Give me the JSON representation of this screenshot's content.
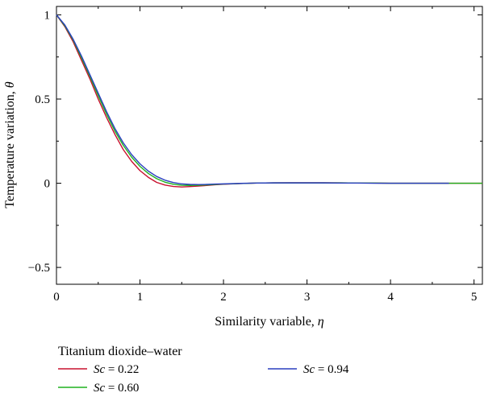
{
  "chart_data": {
    "type": "line",
    "title": "",
    "xlabel_text": "Similarity variable, ",
    "xlabel_symbol": "η",
    "ylabel_text": "Temperature variation, ",
    "ylabel_symbol": "θ",
    "xlim": [
      0,
      5.1
    ],
    "ylim": [
      -0.6,
      1.05
    ],
    "x_ticks": [
      0,
      1,
      2,
      3,
      4,
      5
    ],
    "x_tick_labels": [
      "0",
      "1",
      "2",
      "3",
      "4",
      "5"
    ],
    "y_ticks": [
      1,
      0.5,
      0,
      -0.5
    ],
    "y_tick_labels": [
      "1",
      "0.5",
      "0",
      "−0.5"
    ],
    "grid": false,
    "legend_title": "Titanium dioxide–water",
    "legend_placement": "bottom, below plot",
    "series": [
      {
        "name_symbol": "Sc",
        "name_value": " = 0.22",
        "color": "#c8102e",
        "x": [
          0,
          0.1,
          0.2,
          0.3,
          0.4,
          0.5,
          0.6,
          0.7,
          0.8,
          0.9,
          1.0,
          1.1,
          1.2,
          1.3,
          1.4,
          1.5,
          1.6,
          1.7,
          1.8,
          1.9,
          2.0,
          2.2,
          2.4,
          2.6,
          2.8,
          3.0,
          3.2,
          3.4,
          3.6,
          3.8,
          4.0,
          4.4,
          4.8,
          5.1
        ],
        "y": [
          1.0,
          0.93,
          0.84,
          0.73,
          0.62,
          0.5,
          0.39,
          0.29,
          0.2,
          0.13,
          0.075,
          0.035,
          0.005,
          -0.011,
          -0.019,
          -0.022,
          -0.02,
          -0.017,
          -0.013,
          -0.009,
          -0.006,
          -0.002,
          0.001,
          0.002,
          0.003,
          0.003,
          0.003,
          0.002,
          0.001,
          0.001,
          0.0,
          0.0,
          0.0,
          0.0
        ]
      },
      {
        "name_symbol": "Sc",
        "name_value": " = 0.60",
        "color": "#1fb21f",
        "x": [
          0,
          0.1,
          0.2,
          0.3,
          0.4,
          0.5,
          0.6,
          0.7,
          0.8,
          0.9,
          1.0,
          1.1,
          1.2,
          1.3,
          1.4,
          1.5,
          1.6,
          1.7,
          1.8,
          1.9,
          2.0,
          2.2,
          2.4,
          2.6,
          2.8,
          3.0,
          3.2,
          3.4,
          3.6,
          3.8,
          4.0,
          4.4,
          4.8,
          5.1
        ],
        "y": [
          1.0,
          0.935,
          0.85,
          0.745,
          0.635,
          0.52,
          0.41,
          0.31,
          0.225,
          0.155,
          0.1,
          0.058,
          0.027,
          0.006,
          -0.006,
          -0.012,
          -0.013,
          -0.012,
          -0.01,
          -0.007,
          -0.005,
          -0.002,
          0.001,
          0.002,
          0.002,
          0.002,
          0.002,
          0.002,
          0.001,
          0.001,
          0.0,
          0.0,
          0.0,
          0.0
        ]
      },
      {
        "name_symbol": "Sc",
        "name_value": " = 0.94",
        "color": "#2a3fbf",
        "x": [
          0,
          0.1,
          0.2,
          0.3,
          0.4,
          0.5,
          0.6,
          0.7,
          0.8,
          0.9,
          1.0,
          1.1,
          1.2,
          1.3,
          1.4,
          1.5,
          1.6,
          1.7,
          1.8,
          1.9,
          2.0,
          2.2,
          2.4,
          2.6,
          2.8,
          3.0,
          3.2,
          3.4,
          3.6,
          3.8,
          4.0,
          4.4,
          4.7
        ],
        "y": [
          1.0,
          0.94,
          0.855,
          0.755,
          0.645,
          0.535,
          0.425,
          0.325,
          0.24,
          0.17,
          0.115,
          0.072,
          0.04,
          0.018,
          0.004,
          -0.004,
          -0.007,
          -0.008,
          -0.007,
          -0.005,
          -0.004,
          -0.001,
          0.001,
          0.002,
          0.002,
          0.002,
          0.002,
          0.001,
          0.001,
          0.0,
          0.0,
          0.0,
          0.0
        ]
      }
    ]
  }
}
